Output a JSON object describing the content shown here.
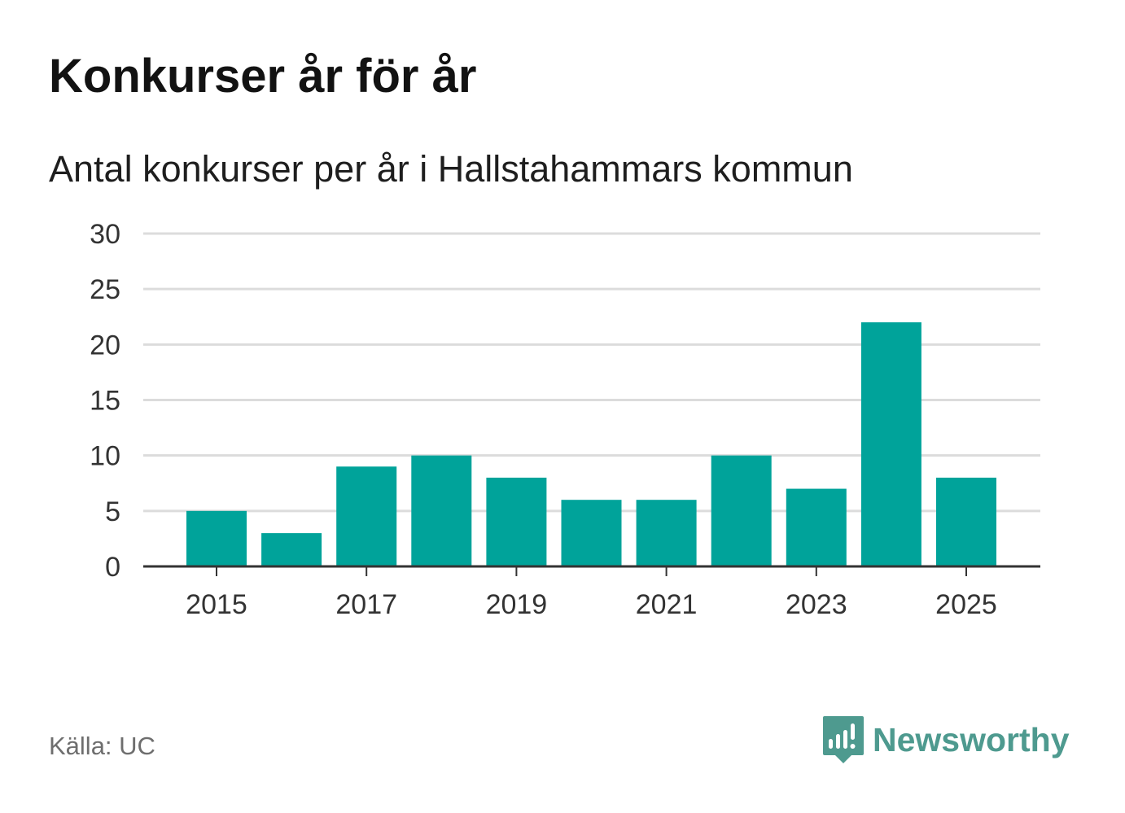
{
  "title": "Konkurser år för år",
  "subtitle": "Antal konkurser per år i Hallstahammars kommun",
  "source": "Källa: UC",
  "brand": {
    "name": "Newsworthy",
    "icon": "newsworthy-bar-chart-icon",
    "color": "#4e9a8f"
  },
  "colors": {
    "bar": "#00a39a",
    "grid": "#dcdcdc",
    "axis": "#333333",
    "tick_text": "#333333"
  },
  "chart_data": {
    "type": "bar",
    "categories": [
      2015,
      2016,
      2017,
      2018,
      2019,
      2020,
      2021,
      2022,
      2023,
      2024,
      2025
    ],
    "values": [
      5,
      3,
      9,
      10,
      8,
      6,
      6,
      10,
      7,
      22,
      8
    ],
    "x_tick_labels": [
      "2015",
      "2017",
      "2019",
      "2021",
      "2023",
      "2025"
    ],
    "y_ticks": [
      0,
      5,
      10,
      15,
      20,
      25,
      30
    ],
    "ylim": [
      0,
      30
    ],
    "grid": true,
    "legend": "none"
  }
}
